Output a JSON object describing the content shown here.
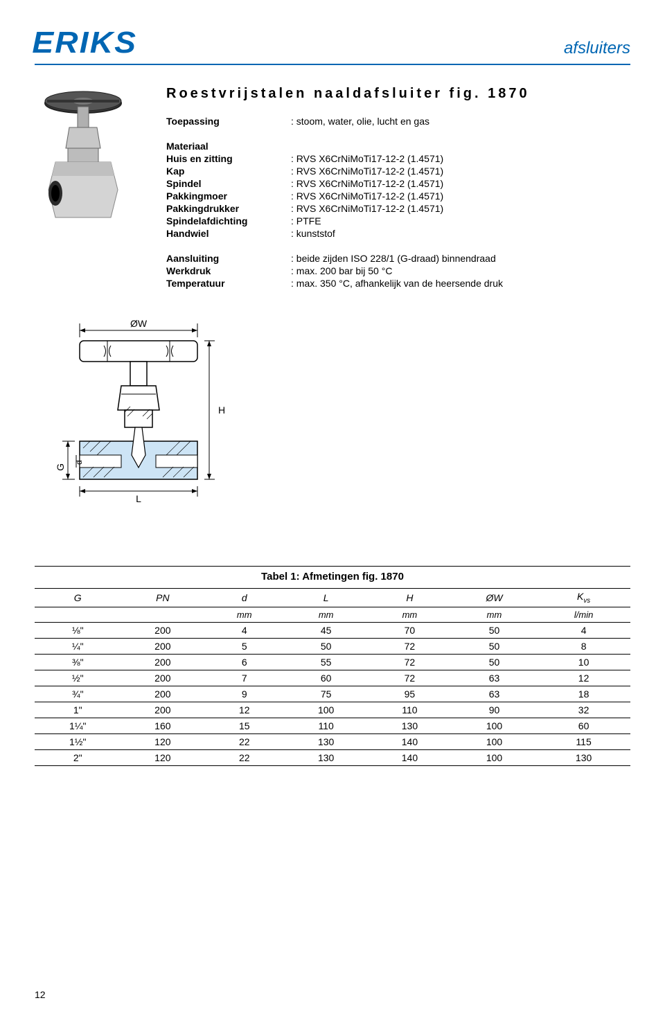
{
  "header": {
    "logo_text": "ERIKS",
    "right_text": "afsluiters"
  },
  "title": "Roestvrijstalen naaldafsluiter fig. 1870",
  "specs": {
    "toepassing": {
      "label": "Toepassing",
      "value": ": stoom, water, olie, lucht en gas"
    },
    "materiaal_header": "Materiaal",
    "rows": [
      {
        "label": "Huis en zitting",
        "value": ": RVS X6CrNiMoTi17-12-2 (1.4571)"
      },
      {
        "label": "Kap",
        "value": ": RVS X6CrNiMoTi17-12-2 (1.4571)"
      },
      {
        "label": "Spindel",
        "value": ": RVS X6CrNiMoTi17-12-2 (1.4571)"
      },
      {
        "label": "Pakkingmoer",
        "value": ": RVS X6CrNiMoTi17-12-2 (1.4571)"
      },
      {
        "label": "Pakkingdrukker",
        "value": ": RVS X6CrNiMoTi17-12-2 (1.4571)"
      },
      {
        "label": "Spindelafdichting",
        "value": ": PTFE"
      },
      {
        "label": "Handwiel",
        "value": ": kunststof"
      }
    ],
    "rows2": [
      {
        "label": "Aansluiting",
        "value": ": beide zijden  ISO 228/1 (G-draad) binnendraad"
      },
      {
        "label": "Werkdruk",
        "value": ": max. 200 bar bij 50 °C"
      },
      {
        "label": "Temperatuur",
        "value": ": max. 350 °C, afhankelijk van de heersende druk"
      }
    ]
  },
  "diagram": {
    "labels": {
      "OW": "ØW",
      "H": "H",
      "G": "G",
      "d": "d",
      "L": "L"
    },
    "colors": {
      "outline": "#000000",
      "fill_valve": "#cde4f5",
      "fill_inner": "#ffffff",
      "dim_line": "#000000"
    }
  },
  "table": {
    "caption": "Tabel 1: Afmetingen fig. 1870",
    "columns": [
      "G",
      "PN",
      "d",
      "L",
      "H",
      "ØW",
      "Kvs"
    ],
    "units": [
      "",
      "",
      "mm",
      "mm",
      "mm",
      "mm",
      "l/min"
    ],
    "rows": [
      [
        "⅛\"",
        "200",
        "4",
        "45",
        "70",
        "50",
        "4"
      ],
      [
        "¼\"",
        "200",
        "5",
        "50",
        "72",
        "50",
        "8"
      ],
      [
        "⅜\"",
        "200",
        "6",
        "55",
        "72",
        "50",
        "10"
      ],
      [
        "½\"",
        "200",
        "7",
        "60",
        "72",
        "63",
        "12"
      ],
      [
        "¾\"",
        "200",
        "9",
        "75",
        "95",
        "63",
        "18"
      ],
      [
        "1\"",
        "200",
        "12",
        "100",
        "110",
        "90",
        "32"
      ],
      [
        "1¼\"",
        "160",
        "15",
        "110",
        "130",
        "100",
        "60"
      ],
      [
        "1½\"",
        "120",
        "22",
        "130",
        "140",
        "100",
        "115"
      ],
      [
        "2\"",
        "120",
        "22",
        "130",
        "140",
        "100",
        "130"
      ]
    ]
  },
  "page_number": "12"
}
